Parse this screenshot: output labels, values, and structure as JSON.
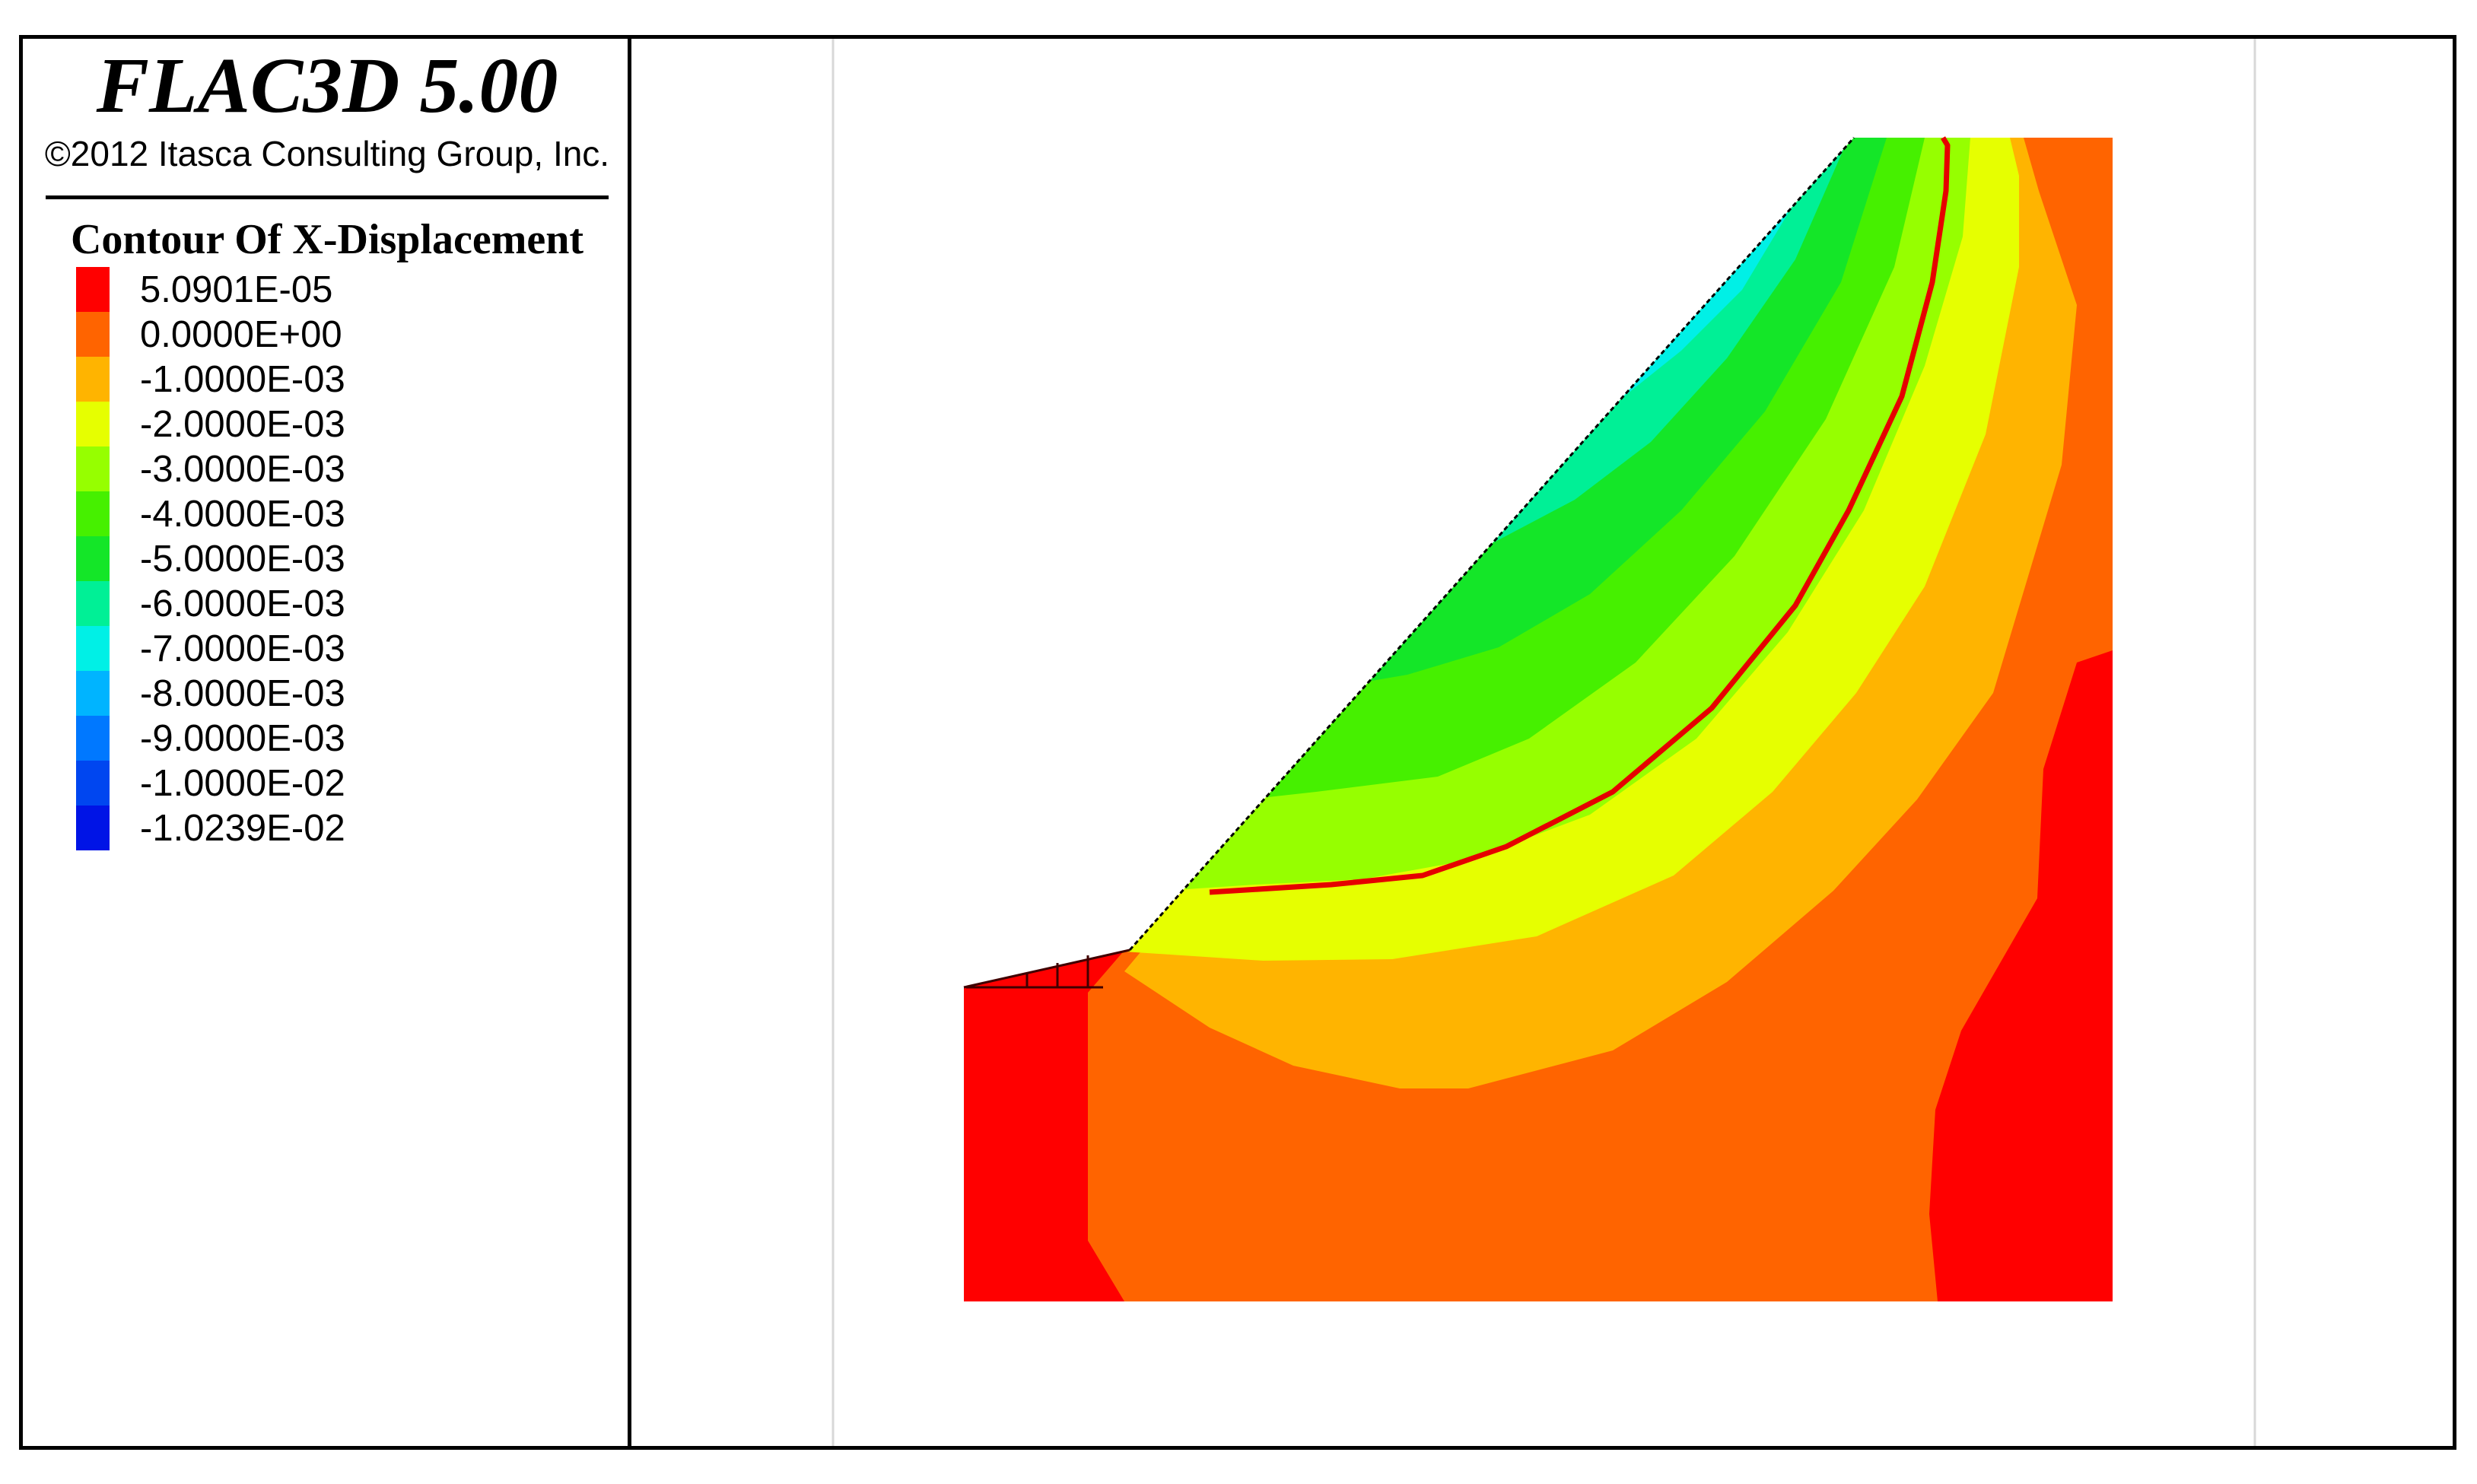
{
  "header": {
    "app_title": "FLAC3D 5.00",
    "copyright": "©2012 Itasca Consulting Group, Inc."
  },
  "chart_data": {
    "type": "heatmap",
    "title": "Contour Of X-Displacement",
    "legend_position": "left",
    "grid": false,
    "levels": [
      {
        "label": "5.0901E-05",
        "value": 5.0901e-05,
        "color": "#ff0000"
      },
      {
        "label": "0.0000E+00",
        "value": 0.0,
        "color": "#ff6400"
      },
      {
        "label": "-1.0000E-03",
        "value": -0.001,
        "color": "#ffb400"
      },
      {
        "label": "-2.0000E-03",
        "value": -0.002,
        "color": "#e6ff00"
      },
      {
        "label": "-3.0000E-03",
        "value": -0.003,
        "color": "#96ff00"
      },
      {
        "label": "-4.0000E-03",
        "value": -0.004,
        "color": "#46f000"
      },
      {
        "label": "-5.0000E-03",
        "value": -0.005,
        "color": "#14e628"
      },
      {
        "label": "-6.0000E-03",
        "value": -0.006,
        "color": "#00f096"
      },
      {
        "label": "-7.0000E-03",
        "value": -0.007,
        "color": "#00f0e6"
      },
      {
        "label": "-8.0000E-03",
        "value": -0.008,
        "color": "#00b4ff"
      },
      {
        "label": "-9.0000E-03",
        "value": -0.009,
        "color": "#0078ff"
      },
      {
        "label": "-1.0000E-02",
        "value": -0.01,
        "color": "#0046f0"
      },
      {
        "label": "-1.0239E-02",
        "value": -0.010239,
        "color": "#0014e6"
      }
    ],
    "slip_surface_color": "#e60000"
  }
}
